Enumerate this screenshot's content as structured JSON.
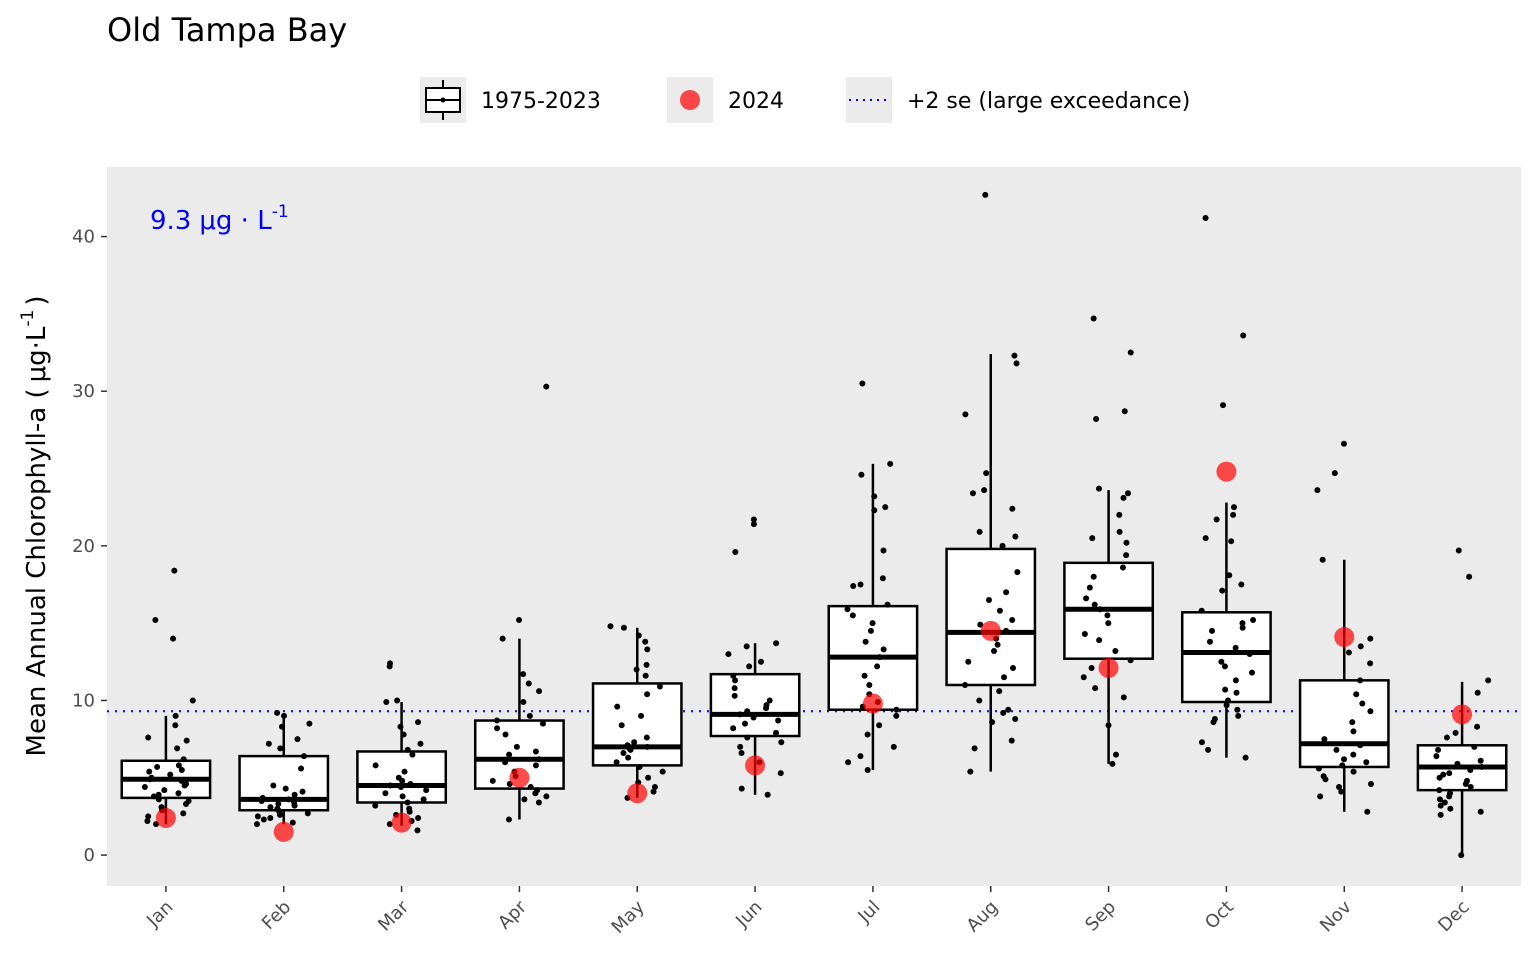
{
  "chart_data": {
    "type": "box",
    "title": "Old Tampa Bay",
    "ylabel_main": "Mean Annual Chlorophyll-a (",
    "ylabel_unit": "μg·L",
    "ylabel_sup": "-1",
    "ylabel_close": ")",
    "ylim": [
      -2,
      44.5
    ],
    "yticks": [
      0,
      10,
      20,
      30,
      40
    ],
    "ytick_labels": [
      "0",
      "10",
      "20",
      "30",
      "40"
    ],
    "categories": [
      "Jan",
      "Feb",
      "Mar",
      "Apr",
      "May",
      "Jun",
      "Jul",
      "Aug",
      "Sep",
      "Oct",
      "Nov",
      "Dec"
    ],
    "legend": {
      "position": "top",
      "box_label": "1975-2023",
      "point_label": "2024",
      "line_label": "+2 se (large exceedance)"
    },
    "threshold": {
      "value": 9.3,
      "label_value": "9.3",
      "label_unit": "μg · L",
      "label_sup": "-1",
      "color": "#0000ff"
    },
    "point_color": "#ff0000",
    "panel_color": "#ebebeb",
    "boxes": [
      {
        "month": "Jan",
        "lower": 2.0,
        "q1": 3.7,
        "median": 4.9,
        "q3": 6.1,
        "upper": 9.0
      },
      {
        "month": "Feb",
        "lower": 2.0,
        "q1": 2.9,
        "median": 3.6,
        "q3": 6.4,
        "upper": 9.1
      },
      {
        "month": "Mar",
        "lower": 1.9,
        "q1": 3.4,
        "median": 4.5,
        "q3": 6.7,
        "upper": 9.9
      },
      {
        "month": "Apr",
        "lower": 2.3,
        "q1": 4.3,
        "median": 6.2,
        "q3": 8.7,
        "upper": 14.0
      },
      {
        "month": "May",
        "lower": 3.7,
        "q1": 5.8,
        "median": 7.0,
        "q3": 11.1,
        "upper": 14.7
      },
      {
        "month": "Jun",
        "lower": 3.9,
        "q1": 7.7,
        "median": 9.1,
        "q3": 11.7,
        "upper": 13.7
      },
      {
        "month": "Jul",
        "lower": 5.5,
        "q1": 9.4,
        "median": 12.8,
        "q3": 16.1,
        "upper": 25.3
      },
      {
        "month": "Aug",
        "lower": 5.4,
        "q1": 11.0,
        "median": 14.4,
        "q3": 19.8,
        "upper": 32.4
      },
      {
        "month": "Sep",
        "lower": 5.9,
        "q1": 12.7,
        "median": 15.9,
        "q3": 18.9,
        "upper": 23.6
      },
      {
        "month": "Oct",
        "lower": 6.3,
        "q1": 9.9,
        "median": 13.1,
        "q3": 15.7,
        "upper": 22.8
      },
      {
        "month": "Nov",
        "lower": 2.8,
        "q1": 5.7,
        "median": 7.2,
        "q3": 11.3,
        "upper": 19.1
      },
      {
        "month": "Dec",
        "lower": 0.0,
        "q1": 4.2,
        "median": 5.7,
        "q3": 7.1,
        "upper": 11.2
      }
    ],
    "points_2024": [
      {
        "month": "Jan",
        "value": 2.4
      },
      {
        "month": "Feb",
        "value": 1.5
      },
      {
        "month": "Mar",
        "value": 2.1
      },
      {
        "month": "Apr",
        "value": 5.0
      },
      {
        "month": "May",
        "value": 4.0
      },
      {
        "month": "Jun",
        "value": 5.8
      },
      {
        "month": "Jul",
        "value": 9.8
      },
      {
        "month": "Aug",
        "value": 14.5
      },
      {
        "month": "Sep",
        "value": 12.1
      },
      {
        "month": "Oct",
        "value": 24.8
      },
      {
        "month": "Nov",
        "value": 14.1
      },
      {
        "month": "Dec",
        "value": 9.1
      }
    ],
    "observations": [
      {
        "month": "Jan",
        "values": [
          18.4,
          15.2,
          14.0,
          10.0,
          9.0,
          8.4,
          7.6,
          7.4,
          6.9,
          6.2,
          5.8,
          5.7,
          5.5,
          5.4,
          5.2,
          5.0,
          4.9,
          4.8,
          4.6,
          4.5,
          4.4,
          4.2,
          4.0,
          3.9,
          3.8,
          3.6,
          3.5,
          3.3,
          3.1,
          2.9,
          2.7,
          2.5,
          2.2,
          2.0
        ]
      },
      {
        "month": "Feb",
        "values": [
          9.2,
          9.0,
          8.5,
          8.3,
          7.5,
          7.2,
          6.9,
          6.4,
          5.6,
          4.5,
          4.3,
          4.1,
          3.9,
          3.7,
          3.6,
          3.5,
          3.4,
          3.3,
          3.2,
          3.1,
          3.0,
          2.9,
          2.8,
          2.7,
          2.6,
          2.5,
          2.4,
          2.3,
          2.1,
          2.0
        ]
      },
      {
        "month": "Mar",
        "values": [
          12.4,
          12.2,
          10.0,
          9.9,
          8.6,
          8.3,
          7.8,
          7.2,
          6.8,
          6.5,
          5.8,
          5.4,
          5.0,
          4.8,
          4.6,
          4.5,
          4.4,
          4.2,
          4.0,
          3.8,
          3.6,
          3.4,
          3.2,
          3.0,
          2.8,
          2.6,
          2.4,
          2.2,
          2.0,
          1.6
        ]
      },
      {
        "month": "Apr",
        "values": [
          30.3,
          15.2,
          14.0,
          11.7,
          11.1,
          10.6,
          9.9,
          9.0,
          8.7,
          8.5,
          8.2,
          7.8,
          7.0,
          6.7,
          6.5,
          6.2,
          6.0,
          5.8,
          5.4,
          5.1,
          4.8,
          4.6,
          4.4,
          4.2,
          4.0,
          3.8,
          3.6,
          3.4,
          2.3
        ]
      },
      {
        "month": "May",
        "values": [
          14.8,
          14.7,
          14.2,
          13.8,
          13.3,
          12.3,
          12.0,
          11.6,
          10.9,
          10.4,
          9.6,
          9.0,
          8.4,
          7.6,
          7.3,
          7.1,
          7.0,
          6.9,
          6.8,
          6.6,
          6.3,
          6.0,
          5.7,
          5.4,
          5.0,
          4.7,
          4.4,
          4.1,
          3.7
        ]
      },
      {
        "month": "Jun",
        "values": [
          21.7,
          21.4,
          19.6,
          13.7,
          13.5,
          13.0,
          12.5,
          12.2,
          11.6,
          11.3,
          10.8,
          10.3,
          10.0,
          9.7,
          9.5,
          9.3,
          9.1,
          8.9,
          8.7,
          8.5,
          8.2,
          7.9,
          7.6,
          7.3,
          7.0,
          6.6,
          6.0,
          5.3,
          4.3,
          3.9
        ]
      },
      {
        "month": "Jul",
        "values": [
          30.5,
          25.3,
          24.6,
          23.2,
          22.5,
          22.3,
          19.7,
          17.9,
          17.5,
          17.4,
          16.2,
          15.9,
          15.5,
          15.0,
          14.5,
          13.8,
          13.3,
          12.8,
          12.2,
          11.6,
          11.0,
          10.4,
          9.9,
          9.6,
          9.4,
          9.0,
          8.4,
          7.8,
          7.0,
          6.4,
          6.0,
          5.5
        ]
      },
      {
        "month": "Aug",
        "values": [
          42.7,
          32.3,
          31.8,
          28.5,
          24.7,
          23.6,
          23.4,
          22.4,
          20.9,
          20.6,
          20.0,
          18.3,
          17.0,
          16.5,
          15.8,
          15.2,
          14.9,
          14.5,
          14.0,
          13.6,
          13.2,
          12.5,
          12.1,
          11.5,
          11.0,
          10.6,
          10.0,
          9.4,
          9.2,
          8.8,
          8.6,
          7.4,
          6.9,
          5.4
        ]
      },
      {
        "month": "Sep",
        "values": [
          34.7,
          32.5,
          28.7,
          28.2,
          23.7,
          23.4,
          23.1,
          22.0,
          20.9,
          20.5,
          20.2,
          19.4,
          18.6,
          18.0,
          17.3,
          16.6,
          16.2,
          15.9,
          15.5,
          15.0,
          14.3,
          13.9,
          13.2,
          12.6,
          12.1,
          11.5,
          10.8,
          10.2,
          8.4,
          6.5,
          5.9
        ]
      },
      {
        "month": "Oct",
        "values": [
          41.2,
          33.6,
          29.1,
          22.5,
          22.0,
          21.7,
          20.5,
          20.3,
          18.1,
          17.5,
          17.1,
          15.8,
          15.2,
          15.0,
          14.7,
          14.5,
          13.8,
          13.4,
          13.0,
          12.5,
          12.2,
          11.8,
          11.3,
          10.7,
          10.5,
          10.0,
          9.7,
          9.4,
          9.0,
          8.8,
          8.6,
          7.3,
          6.8,
          6.3
        ]
      },
      {
        "month": "Nov",
        "values": [
          26.6,
          24.7,
          23.6,
          19.1,
          14.0,
          13.5,
          13.1,
          12.4,
          11.3,
          10.4,
          9.8,
          9.3,
          8.6,
          8.0,
          7.5,
          7.1,
          6.8,
          6.5,
          6.2,
          6.0,
          5.8,
          5.6,
          5.4,
          5.1,
          4.9,
          4.6,
          4.4,
          4.1,
          3.8,
          2.8
        ]
      },
      {
        "month": "Dec",
        "values": [
          19.7,
          18.0,
          11.3,
          10.5,
          8.3,
          7.9,
          7.6,
          7.0,
          6.8,
          6.4,
          6.1,
          5.9,
          5.7,
          5.5,
          5.3,
          5.2,
          5.0,
          4.8,
          4.6,
          4.4,
          4.2,
          4.0,
          3.8,
          3.6,
          3.4,
          3.2,
          3.0,
          2.8,
          2.6,
          0.0
        ]
      }
    ]
  }
}
